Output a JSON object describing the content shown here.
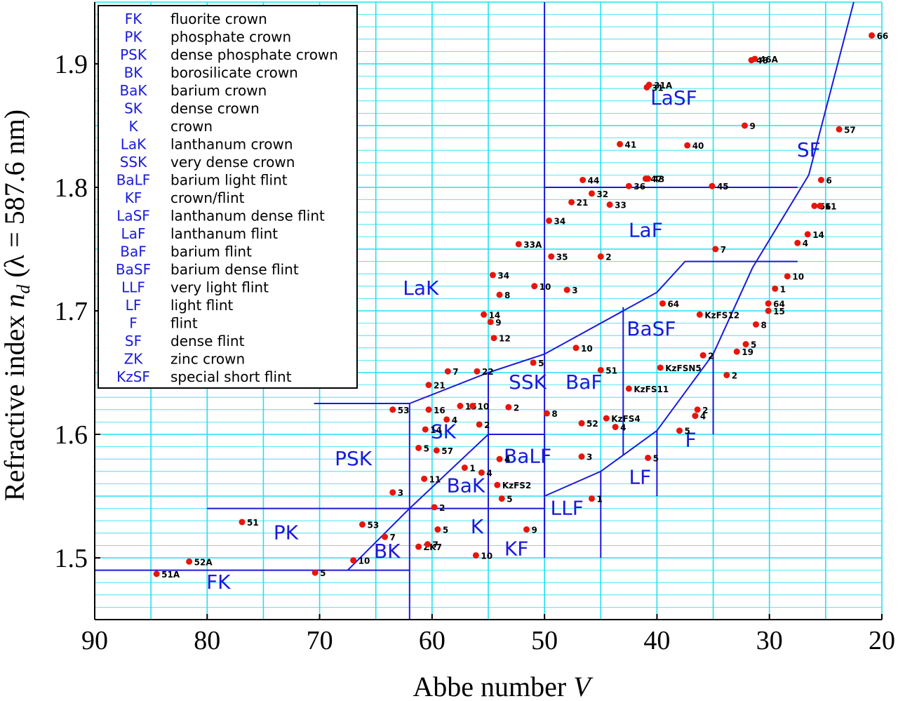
{
  "chart_data": {
    "type": "scatter",
    "xlabel": "Abbe number V",
    "ylabel": "Refractive index n_d (λ = 587.6 nm)",
    "xlim": [
      90,
      20
    ],
    "ylim": [
      1.45,
      1.95
    ],
    "x_ticks": [
      "90",
      "80",
      "70",
      "60",
      "50",
      "40",
      "30",
      "20"
    ],
    "y_ticks": [
      "1.5",
      "1.6",
      "1.7",
      "1.8",
      "1.9"
    ],
    "grid": true,
    "colors": {
      "grid": "#22e0f0",
      "region_line": "#1a1adc",
      "point": "#e8150c",
      "axis": "#000000"
    },
    "legend_position": "top-left",
    "legend": [
      {
        "abbr": "FK",
        "desc": "fluorite crown"
      },
      {
        "abbr": "PK",
        "desc": "phosphate crown"
      },
      {
        "abbr": "PSK",
        "desc": "dense phosphate crown"
      },
      {
        "abbr": "BK",
        "desc": "borosilicate crown"
      },
      {
        "abbr": "BaK",
        "desc": "barium crown"
      },
      {
        "abbr": "SK",
        "desc": "dense crown"
      },
      {
        "abbr": "K",
        "desc": "crown"
      },
      {
        "abbr": "LaK",
        "desc": "lanthanum crown"
      },
      {
        "abbr": "SSK",
        "desc": "very dense crown"
      },
      {
        "abbr": "BaLF",
        "desc": "barium light flint"
      },
      {
        "abbr": "KF",
        "desc": "crown/flint"
      },
      {
        "abbr": "LaSF",
        "desc": "lanthanum dense flint"
      },
      {
        "abbr": "LaF",
        "desc": "lanthanum flint"
      },
      {
        "abbr": "BaF",
        "desc": "barium flint"
      },
      {
        "abbr": "BaSF",
        "desc": "barium dense flint"
      },
      {
        "abbr": "LLF",
        "desc": "very light flint"
      },
      {
        "abbr": "LF",
        "desc": "light flint"
      },
      {
        "abbr": "F",
        "desc": "flint"
      },
      {
        "abbr": "SF",
        "desc": "dense flint"
      },
      {
        "abbr": "ZK",
        "desc": "zinc crown"
      },
      {
        "abbr": "KzSF",
        "desc": "special short flint"
      }
    ],
    "region_labels": [
      {
        "text": "FK",
        "x": 79,
        "y": 1.475
      },
      {
        "text": "PK",
        "x": 73,
        "y": 1.515
      },
      {
        "text": "PSK",
        "x": 67,
        "y": 1.575
      },
      {
        "text": "BK",
        "x": 64,
        "y": 1.5
      },
      {
        "text": "SK",
        "x": 59,
        "y": 1.597
      },
      {
        "text": "BaK",
        "x": 57,
        "y": 1.553
      },
      {
        "text": "K",
        "x": 56,
        "y": 1.52
      },
      {
        "text": "LaK",
        "x": 61,
        "y": 1.713
      },
      {
        "text": "SSK",
        "x": 51.5,
        "y": 1.637
      },
      {
        "text": "BaLF",
        "x": 51.5,
        "y": 1.577
      },
      {
        "text": "KF",
        "x": 52.5,
        "y": 1.502
      },
      {
        "text": "LLF",
        "x": 48,
        "y": 1.535
      },
      {
        "text": "BaF",
        "x": 46.5,
        "y": 1.637
      },
      {
        "text": "LF",
        "x": 41.5,
        "y": 1.56
      },
      {
        "text": "F",
        "x": 37,
        "y": 1.59
      },
      {
        "text": "BaSF",
        "x": 40.5,
        "y": 1.68
      },
      {
        "text": "LaF",
        "x": 41,
        "y": 1.76
      },
      {
        "text": "LaSF",
        "x": 38.5,
        "y": 1.867
      },
      {
        "text": "SF",
        "x": 26.5,
        "y": 1.825
      }
    ],
    "region_lines": [
      [
        [
          90,
          1.49
        ],
        [
          62,
          1.49
        ]
      ],
      [
        [
          62,
          1.45
        ],
        [
          62,
          1.54
        ]
      ],
      [
        [
          80,
          1.54
        ],
        [
          50,
          1.54
        ]
      ],
      [
        [
          70.5,
          1.625
        ],
        [
          62,
          1.625
        ]
      ],
      [
        [
          62,
          1.54
        ],
        [
          62,
          1.625
        ]
      ],
      [
        [
          67.5,
          1.49
        ],
        [
          62,
          1.54
        ],
        [
          55,
          1.6
        ],
        [
          50,
          1.6
        ]
      ],
      [
        [
          62,
          1.625
        ],
        [
          55,
          1.65
        ],
        [
          50,
          1.665
        ],
        [
          40,
          1.715
        ],
        [
          37.5,
          1.74
        ],
        [
          27.5,
          1.74
        ]
      ],
      [
        [
          55,
          1.5
        ],
        [
          55,
          1.65
        ]
      ],
      [
        [
          50,
          1.5
        ],
        [
          50,
          1.97
        ]
      ],
      [
        [
          50,
          1.6
        ],
        [
          50,
          1.5
        ]
      ],
      [
        [
          50,
          1.8
        ],
        [
          27.5,
          1.8
        ]
      ],
      [
        [
          50,
          1.55
        ],
        [
          45,
          1.57
        ],
        [
          40,
          1.603
        ],
        [
          35,
          1.665
        ],
        [
          31.5,
          1.735
        ],
        [
          26.5,
          1.81
        ],
        [
          22.5,
          1.95
        ]
      ],
      [
        [
          45,
          1.5
        ],
        [
          45,
          1.57
        ]
      ],
      [
        [
          43,
          1.583
        ],
        [
          43,
          1.703
        ]
      ],
      [
        [
          40,
          1.55
        ],
        [
          40,
          1.603
        ]
      ],
      [
        [
          35,
          1.6
        ],
        [
          35,
          1.665
        ]
      ]
    ],
    "points": [
      {
        "x": 84.5,
        "y": 1.487,
        "label": "51A"
      },
      {
        "x": 81.6,
        "y": 1.497,
        "label": "52A"
      },
      {
        "x": 76.9,
        "y": 1.529,
        "label": "51"
      },
      {
        "x": 70.4,
        "y": 1.488,
        "label": "5"
      },
      {
        "x": 67,
        "y": 1.498,
        "label": "10"
      },
      {
        "x": 66.2,
        "y": 1.527,
        "label": "53"
      },
      {
        "x": 64.2,
        "y": 1.517,
        "label": "7"
      },
      {
        "x": 63.5,
        "y": 1.553,
        "label": "3"
      },
      {
        "x": 63.5,
        "y": 1.62,
        "label": "53"
      },
      {
        "x": 61.2,
        "y": 1.509,
        "label": "ZK7"
      },
      {
        "x": 60.4,
        "y": 1.511,
        "label": "7"
      },
      {
        "x": 59.5,
        "y": 1.523,
        "label": "5"
      },
      {
        "x": 59.8,
        "y": 1.541,
        "label": "2"
      },
      {
        "x": 61.2,
        "y": 1.589,
        "label": "5"
      },
      {
        "x": 60.7,
        "y": 1.564,
        "label": "11"
      },
      {
        "x": 59.6,
        "y": 1.587,
        "label": "57"
      },
      {
        "x": 60.6,
        "y": 1.604,
        "label": "14"
      },
      {
        "x": 60.3,
        "y": 1.62,
        "label": "16"
      },
      {
        "x": 60.3,
        "y": 1.64,
        "label": "21"
      },
      {
        "x": 58.6,
        "y": 1.651,
        "label": "7"
      },
      {
        "x": 58.7,
        "y": 1.612,
        "label": "4"
      },
      {
        "x": 57.5,
        "y": 1.623,
        "label": "15"
      },
      {
        "x": 56.4,
        "y": 1.623,
        "label": "10"
      },
      {
        "x": 55.8,
        "y": 1.608,
        "label": "2"
      },
      {
        "x": 57.1,
        "y": 1.573,
        "label": "1"
      },
      {
        "x": 55.6,
        "y": 1.569,
        "label": "4"
      },
      {
        "x": 56.1,
        "y": 1.502,
        "label": "10"
      },
      {
        "x": 56,
        "y": 1.651,
        "label": "22"
      },
      {
        "x": 54.5,
        "y": 1.678,
        "label": "12"
      },
      {
        "x": 54.8,
        "y": 1.691,
        "label": "9"
      },
      {
        "x": 55.4,
        "y": 1.697,
        "label": "14"
      },
      {
        "x": 54.0,
        "y": 1.713,
        "label": "8"
      },
      {
        "x": 54.6,
        "y": 1.729,
        "label": "34"
      },
      {
        "x": 52.3,
        "y": 1.754,
        "label": "33A"
      },
      {
        "x": 50.9,
        "y": 1.72,
        "label": "10"
      },
      {
        "x": 53.2,
        "y": 1.622,
        "label": "2"
      },
      {
        "x": 54.0,
        "y": 1.58,
        "label": "4"
      },
      {
        "x": 54.2,
        "y": 1.559,
        "label": "KzFS2"
      },
      {
        "x": 53.8,
        "y": 1.548,
        "label": "5"
      },
      {
        "x": 51.6,
        "y": 1.523,
        "label": "9"
      },
      {
        "x": 51.0,
        "y": 1.658,
        "label": "5"
      },
      {
        "x": 49.8,
        "y": 1.617,
        "label": "8"
      },
      {
        "x": 49.6,
        "y": 1.773,
        "label": "34"
      },
      {
        "x": 49.4,
        "y": 1.744,
        "label": "35"
      },
      {
        "x": 48.0,
        "y": 1.717,
        "label": "3"
      },
      {
        "x": 47.2,
        "y": 1.67,
        "label": "10"
      },
      {
        "x": 47.6,
        "y": 1.788,
        "label": "21"
      },
      {
        "x": 46.6,
        "y": 1.806,
        "label": "44"
      },
      {
        "x": 45.8,
        "y": 1.795,
        "label": "32"
      },
      {
        "x": 45.0,
        "y": 1.744,
        "label": "2"
      },
      {
        "x": 45.0,
        "y": 1.652,
        "label": "51"
      },
      {
        "x": 44.5,
        "y": 1.613,
        "label": "KzFS4"
      },
      {
        "x": 43.7,
        "y": 1.606,
        "label": "4"
      },
      {
        "x": 46.7,
        "y": 1.609,
        "label": "52"
      },
      {
        "x": 46.7,
        "y": 1.582,
        "label": "3"
      },
      {
        "x": 45.8,
        "y": 1.548,
        "label": "1"
      },
      {
        "x": 44.2,
        "y": 1.786,
        "label": "33"
      },
      {
        "x": 43.3,
        "y": 1.835,
        "label": "41"
      },
      {
        "x": 42.5,
        "y": 1.801,
        "label": "36"
      },
      {
        "x": 42.5,
        "y": 1.637,
        "label": "KzFS11"
      },
      {
        "x": 41.0,
        "y": 1.807,
        "label": "47"
      },
      {
        "x": 40.8,
        "y": 1.807,
        "label": "43"
      },
      {
        "x": 40.9,
        "y": 1.881,
        "label": "31"
      },
      {
        "x": 40.7,
        "y": 1.883,
        "label": "31A"
      },
      {
        "x": 39.5,
        "y": 1.706,
        "label": "64"
      },
      {
        "x": 39.7,
        "y": 1.654,
        "label": "KzFSN5"
      },
      {
        "x": 40.8,
        "y": 1.581,
        "label": "5"
      },
      {
        "x": 37.3,
        "y": 1.834,
        "label": "40"
      },
      {
        "x": 38.0,
        "y": 1.603,
        "label": "5"
      },
      {
        "x": 36.6,
        "y": 1.615,
        "label": "4"
      },
      {
        "x": 36.4,
        "y": 1.62,
        "label": "2"
      },
      {
        "x": 36.2,
        "y": 1.697,
        "label": "KzFS12"
      },
      {
        "x": 35.9,
        "y": 1.664,
        "label": "2"
      },
      {
        "x": 35.1,
        "y": 1.801,
        "label": "45"
      },
      {
        "x": 34.8,
        "y": 1.75,
        "label": "7"
      },
      {
        "x": 33.8,
        "y": 1.648,
        "label": "2"
      },
      {
        "x": 32.9,
        "y": 1.667,
        "label": "19"
      },
      {
        "x": 32.1,
        "y": 1.673,
        "label": "5"
      },
      {
        "x": 32.2,
        "y": 1.85,
        "label": "9"
      },
      {
        "x": 31.6,
        "y": 1.903,
        "label": "46"
      },
      {
        "x": 31.3,
        "y": 1.904,
        "label": "46A"
      },
      {
        "x": 31.2,
        "y": 1.689,
        "label": "8"
      },
      {
        "x": 30.1,
        "y": 1.7,
        "label": "15"
      },
      {
        "x": 30.1,
        "y": 1.706,
        "label": "64"
      },
      {
        "x": 29.5,
        "y": 1.718,
        "label": "1"
      },
      {
        "x": 28.4,
        "y": 1.728,
        "label": "10"
      },
      {
        "x": 27.5,
        "y": 1.755,
        "label": "4"
      },
      {
        "x": 26.6,
        "y": 1.762,
        "label": "14"
      },
      {
        "x": 26.0,
        "y": 1.785,
        "label": "56"
      },
      {
        "x": 25.5,
        "y": 1.785,
        "label": "11"
      },
      {
        "x": 25.4,
        "y": 1.806,
        "label": "6"
      },
      {
        "x": 23.8,
        "y": 1.847,
        "label": "57"
      },
      {
        "x": 20.9,
        "y": 1.923,
        "label": "66"
      }
    ]
  }
}
